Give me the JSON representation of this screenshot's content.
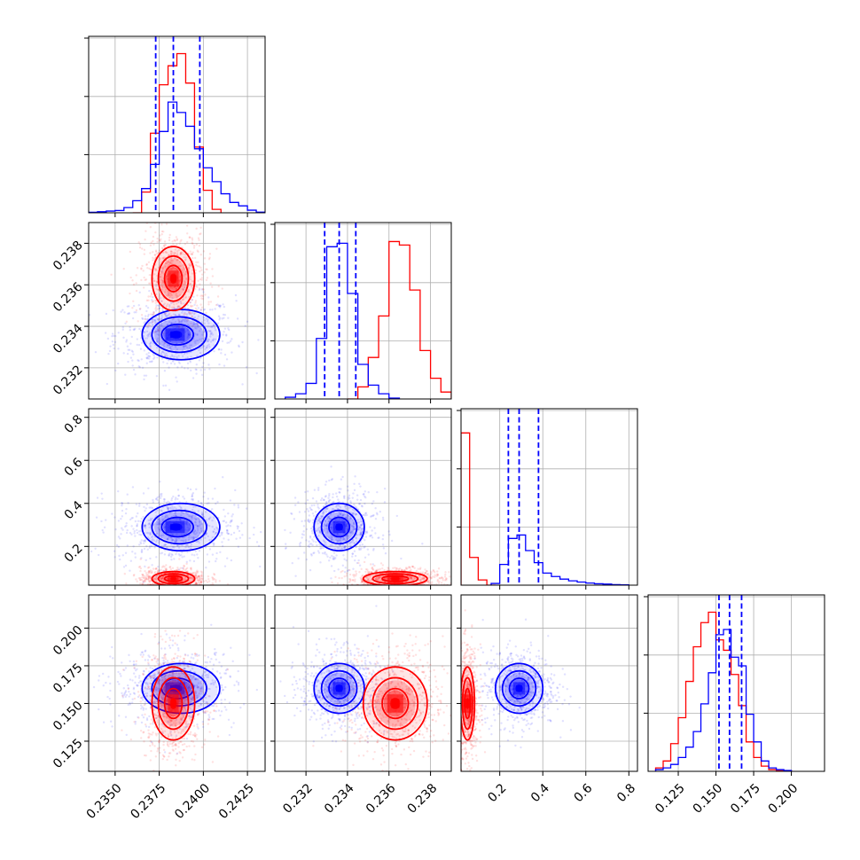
{
  "chart_data": {
    "type": "corner",
    "parameters": 4,
    "title": "",
    "colors": {
      "blue": "#0000ff",
      "red": "#ff0000",
      "grid": "#b0b0b0",
      "frame": "#000000"
    },
    "diagonal": [
      {
        "param": 0,
        "xlim": [
          0.2335,
          0.2435
        ],
        "xticks": [],
        "ylim": [
          0,
          1.02
        ],
        "quantiles_blue": [
          0.2373,
          0.2383,
          0.2398
        ],
        "hist_blue": [
          {
            "x0": 0.2335,
            "x1": 0.234,
            "y": 0.003
          },
          {
            "x0": 0.234,
            "x1": 0.2345,
            "y": 0.006
          },
          {
            "x0": 0.2345,
            "x1": 0.235,
            "y": 0.01
          },
          {
            "x0": 0.235,
            "x1": 0.2355,
            "y": 0.013
          },
          {
            "x0": 0.2355,
            "x1": 0.236,
            "y": 0.03
          },
          {
            "x0": 0.236,
            "x1": 0.2365,
            "y": 0.07
          },
          {
            "x0": 0.2365,
            "x1": 0.237,
            "y": 0.14
          },
          {
            "x0": 0.237,
            "x1": 0.2375,
            "y": 0.28
          },
          {
            "x0": 0.2375,
            "x1": 0.238,
            "y": 0.47
          },
          {
            "x0": 0.238,
            "x1": 0.2385,
            "y": 0.64
          },
          {
            "x0": 0.2385,
            "x1": 0.239,
            "y": 0.58
          },
          {
            "x0": 0.239,
            "x1": 0.2395,
            "y": 0.5
          },
          {
            "x0": 0.2395,
            "x1": 0.24,
            "y": 0.37
          },
          {
            "x0": 0.24,
            "x1": 0.2405,
            "y": 0.26
          },
          {
            "x0": 0.2405,
            "x1": 0.241,
            "y": 0.18
          },
          {
            "x0": 0.241,
            "x1": 0.2415,
            "y": 0.11
          },
          {
            "x0": 0.2415,
            "x1": 0.242,
            "y": 0.06
          },
          {
            "x0": 0.242,
            "x1": 0.2425,
            "y": 0.04
          },
          {
            "x0": 0.2425,
            "x1": 0.243,
            "y": 0.015
          },
          {
            "x0": 0.243,
            "x1": 0.2435,
            "y": 0.004
          }
        ],
        "hist_red": [
          {
            "x0": 0.236,
            "x1": 0.2365,
            "y": 0.0
          },
          {
            "x0": 0.2365,
            "x1": 0.237,
            "y": 0.12
          },
          {
            "x0": 0.237,
            "x1": 0.2375,
            "y": 0.46
          },
          {
            "x0": 0.2375,
            "x1": 0.238,
            "y": 0.74
          },
          {
            "x0": 0.238,
            "x1": 0.2385,
            "y": 0.85
          },
          {
            "x0": 0.2385,
            "x1": 0.239,
            "y": 0.92
          },
          {
            "x0": 0.239,
            "x1": 0.2395,
            "y": 0.75
          },
          {
            "x0": 0.2395,
            "x1": 0.24,
            "y": 0.38
          },
          {
            "x0": 0.24,
            "x1": 0.2405,
            "y": 0.13
          },
          {
            "x0": 0.2405,
            "x1": 0.241,
            "y": 0.02
          }
        ]
      },
      {
        "param": 1,
        "xlim": [
          0.2305,
          0.239
        ],
        "ylim": [
          0,
          1.02
        ],
        "quantiles_blue": [
          0.2329,
          0.2336,
          0.2344
        ],
        "hist_blue": [
          {
            "x0": 0.231,
            "x1": 0.2315,
            "y": 0.01
          },
          {
            "x0": 0.2315,
            "x1": 0.232,
            "y": 0.03
          },
          {
            "x0": 0.232,
            "x1": 0.2325,
            "y": 0.09
          },
          {
            "x0": 0.2325,
            "x1": 0.233,
            "y": 0.35
          },
          {
            "x0": 0.233,
            "x1": 0.2335,
            "y": 0.88
          },
          {
            "x0": 0.2335,
            "x1": 0.234,
            "y": 0.9
          },
          {
            "x0": 0.234,
            "x1": 0.2345,
            "y": 0.61
          },
          {
            "x0": 0.2345,
            "x1": 0.235,
            "y": 0.2
          },
          {
            "x0": 0.235,
            "x1": 0.2355,
            "y": 0.08
          },
          {
            "x0": 0.2355,
            "x1": 0.236,
            "y": 0.03
          },
          {
            "x0": 0.236,
            "x1": 0.2365,
            "y": 0.005
          }
        ],
        "hist_red": [
          {
            "x0": 0.234,
            "x1": 0.2345,
            "y": 0.0
          },
          {
            "x0": 0.2345,
            "x1": 0.235,
            "y": 0.07
          },
          {
            "x0": 0.235,
            "x1": 0.2355,
            "y": 0.24
          },
          {
            "x0": 0.2355,
            "x1": 0.236,
            "y": 0.48
          },
          {
            "x0": 0.236,
            "x1": 0.2365,
            "y": 0.91
          },
          {
            "x0": 0.2365,
            "x1": 0.237,
            "y": 0.89
          },
          {
            "x0": 0.237,
            "x1": 0.2375,
            "y": 0.63
          },
          {
            "x0": 0.2375,
            "x1": 0.238,
            "y": 0.28
          },
          {
            "x0": 0.238,
            "x1": 0.2385,
            "y": 0.12
          },
          {
            "x0": 0.2385,
            "x1": 0.239,
            "y": 0.04
          }
        ]
      },
      {
        "param": 2,
        "xlim": [
          0.02,
          0.84
        ],
        "ylim": [
          0,
          1.02
        ],
        "quantiles_blue": [
          0.24,
          0.29,
          0.38
        ],
        "hist_blue": [
          {
            "x0": 0.16,
            "x1": 0.2,
            "y": 0.01
          },
          {
            "x0": 0.2,
            "x1": 0.24,
            "y": 0.12
          },
          {
            "x0": 0.24,
            "x1": 0.28,
            "y": 0.27
          },
          {
            "x0": 0.28,
            "x1": 0.32,
            "y": 0.29
          },
          {
            "x0": 0.32,
            "x1": 0.36,
            "y": 0.2
          },
          {
            "x0": 0.36,
            "x1": 0.4,
            "y": 0.13
          },
          {
            "x0": 0.4,
            "x1": 0.44,
            "y": 0.07
          },
          {
            "x0": 0.44,
            "x1": 0.48,
            "y": 0.05
          },
          {
            "x0": 0.48,
            "x1": 0.52,
            "y": 0.035
          },
          {
            "x0": 0.52,
            "x1": 0.56,
            "y": 0.025
          },
          {
            "x0": 0.56,
            "x1": 0.6,
            "y": 0.018
          },
          {
            "x0": 0.6,
            "x1": 0.64,
            "y": 0.012
          },
          {
            "x0": 0.64,
            "x1": 0.68,
            "y": 0.008
          },
          {
            "x0": 0.68,
            "x1": 0.72,
            "y": 0.006
          },
          {
            "x0": 0.72,
            "x1": 0.76,
            "y": 0.003
          },
          {
            "x0": 0.76,
            "x1": 0.8,
            "y": 0.002
          }
        ],
        "hist_red": [
          {
            "x0": 0.02,
            "x1": 0.06,
            "y": 0.88
          },
          {
            "x0": 0.06,
            "x1": 0.1,
            "y": 0.16
          },
          {
            "x0": 0.1,
            "x1": 0.14,
            "y": 0.03
          },
          {
            "x0": 0.14,
            "x1": 0.18,
            "y": 0.0
          }
        ]
      },
      {
        "param": 3,
        "xlim": [
          0.105,
          0.222
        ],
        "ylim": [
          0,
          1.02
        ],
        "quantiles_blue": [
          0.152,
          0.159,
          0.167
        ],
        "hist_blue": [
          {
            "x0": 0.11,
            "x1": 0.115,
            "y": 0.01
          },
          {
            "x0": 0.115,
            "x1": 0.12,
            "y": 0.02
          },
          {
            "x0": 0.12,
            "x1": 0.125,
            "y": 0.04
          },
          {
            "x0": 0.125,
            "x1": 0.13,
            "y": 0.08
          },
          {
            "x0": 0.13,
            "x1": 0.135,
            "y": 0.14
          },
          {
            "x0": 0.135,
            "x1": 0.14,
            "y": 0.23
          },
          {
            "x0": 0.14,
            "x1": 0.145,
            "y": 0.39
          },
          {
            "x0": 0.145,
            "x1": 0.15,
            "y": 0.57
          },
          {
            "x0": 0.15,
            "x1": 0.155,
            "y": 0.79
          },
          {
            "x0": 0.155,
            "x1": 0.16,
            "y": 0.82
          },
          {
            "x0": 0.16,
            "x1": 0.165,
            "y": 0.66
          },
          {
            "x0": 0.165,
            "x1": 0.17,
            "y": 0.61
          },
          {
            "x0": 0.17,
            "x1": 0.175,
            "y": 0.33
          },
          {
            "x0": 0.175,
            "x1": 0.18,
            "y": 0.17
          },
          {
            "x0": 0.18,
            "x1": 0.185,
            "y": 0.06
          },
          {
            "x0": 0.185,
            "x1": 0.19,
            "y": 0.02
          },
          {
            "x0": 0.19,
            "x1": 0.195,
            "y": 0.01
          },
          {
            "x0": 0.195,
            "x1": 0.2,
            "y": 0.005
          }
        ],
        "hist_red": [
          {
            "x0": 0.11,
            "x1": 0.115,
            "y": 0.02
          },
          {
            "x0": 0.115,
            "x1": 0.12,
            "y": 0.06
          },
          {
            "x0": 0.12,
            "x1": 0.125,
            "y": 0.16
          },
          {
            "x0": 0.125,
            "x1": 0.13,
            "y": 0.31
          },
          {
            "x0": 0.13,
            "x1": 0.135,
            "y": 0.52
          },
          {
            "x0": 0.135,
            "x1": 0.14,
            "y": 0.72
          },
          {
            "x0": 0.14,
            "x1": 0.145,
            "y": 0.86
          },
          {
            "x0": 0.145,
            "x1": 0.15,
            "y": 0.92
          },
          {
            "x0": 0.15,
            "x1": 0.155,
            "y": 0.76
          },
          {
            "x0": 0.155,
            "x1": 0.16,
            "y": 0.7
          },
          {
            "x0": 0.16,
            "x1": 0.165,
            "y": 0.56
          },
          {
            "x0": 0.165,
            "x1": 0.17,
            "y": 0.38
          },
          {
            "x0": 0.17,
            "x1": 0.175,
            "y": 0.17
          },
          {
            "x0": 0.175,
            "x1": 0.18,
            "y": 0.08
          },
          {
            "x0": 0.18,
            "x1": 0.185,
            "y": 0.03
          },
          {
            "x0": 0.185,
            "x1": 0.19,
            "y": 0.01
          },
          {
            "x0": 0.19,
            "x1": 0.2,
            "y": 0.004
          }
        ]
      }
    ],
    "axes": [
      {
        "param": 0,
        "xlim": [
          0.2335,
          0.2435
        ],
        "ticks": [
          0.235,
          0.2375,
          0.24,
          0.2425
        ],
        "tick_labels": [
          "0.2350",
          "0.2375",
          "0.2400",
          "0.2425"
        ]
      },
      {
        "param": 1,
        "xlim": [
          0.2305,
          0.239
        ],
        "ticks": [
          0.232,
          0.234,
          0.236,
          0.238
        ],
        "tick_labels": [
          "0.232",
          "0.234",
          "0.236",
          "0.238"
        ]
      },
      {
        "param": 2,
        "xlim": [
          0.02,
          0.84
        ],
        "ticks": [
          0.2,
          0.4,
          0.6,
          0.8
        ],
        "tick_labels": [
          "0.2",
          "0.4",
          "0.6",
          "0.8"
        ]
      },
      {
        "param": 3,
        "xlim": [
          0.105,
          0.222
        ],
        "ticks": [
          0.125,
          0.15,
          0.175,
          0.2
        ],
        "tick_labels": [
          "0.125",
          "0.150",
          "0.175",
          "0.200"
        ]
      }
    ],
    "posterior_blue": {
      "mean": [
        0.2384,
        0.2336,
        0.29,
        0.16
      ],
      "sd": [
        0.001,
        0.00055,
        0.05,
        0.0075
      ]
    },
    "posterior_red": {
      "mean": [
        0.2383,
        0.2363,
        0.05,
        0.15
      ],
      "sd": [
        0.00055,
        0.0007,
        0.015,
        0.011
      ]
    },
    "xlabel": "",
    "ylabel": "",
    "grid": true,
    "legend": "none"
  }
}
